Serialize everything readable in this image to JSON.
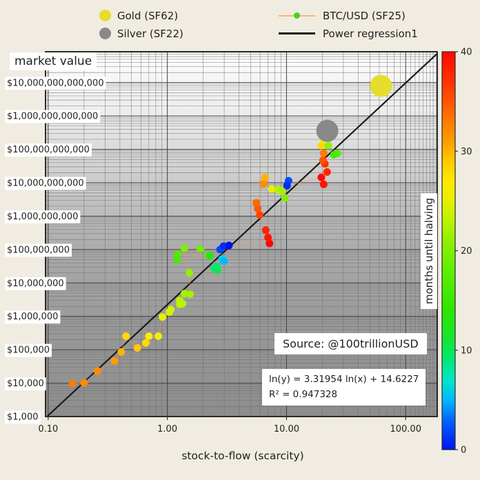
{
  "page_bg": "#f1ece1",
  "legend": {
    "items": [
      {
        "id": "gold",
        "label": "Gold (SF62)",
        "marker": "dot",
        "color": "#e6dd2d"
      },
      {
        "id": "silver",
        "label": "Silver (SF22)",
        "marker": "dot",
        "color": "#898989"
      },
      {
        "id": "btc",
        "label": "BTC/USD (SF25)",
        "marker": "line-dot",
        "line_color": "#ffb17a",
        "dot_color": "#3fd61f"
      },
      {
        "id": "regression",
        "label": "Power regression1",
        "marker": "line",
        "color": "#111111"
      }
    ]
  },
  "chart_data": {
    "type": "scatter",
    "xlabel": "stock-to-flow (scarcity)",
    "ylabel": "market value",
    "x_scale": "log",
    "y_scale": "log",
    "xlim": [
      0.095,
      184
    ],
    "ylim": [
      1000,
      84000000000000.0
    ],
    "grid": true,
    "x_ticks": [
      {
        "v": 0.1,
        "label": "0.10"
      },
      {
        "v": 1,
        "label": "1.00"
      },
      {
        "v": 10,
        "label": "10.00"
      },
      {
        "v": 100,
        "label": "100.00"
      }
    ],
    "y_ticks": [
      {
        "v": 1000.0,
        "label": "$1,000"
      },
      {
        "v": 10000.0,
        "label": "$10,000"
      },
      {
        "v": 100000.0,
        "label": "$100,000"
      },
      {
        "v": 1000000.0,
        "label": "$1,000,000"
      },
      {
        "v": 10000000.0,
        "label": "$10,000,000"
      },
      {
        "v": 100000000.0,
        "label": "$100,000,000"
      },
      {
        "v": 1000000000.0,
        "label": "$1,000,000,000"
      },
      {
        "v": 10000000000.0,
        "label": "$10,000,000,000"
      },
      {
        "v": 100000000000.0,
        "label": "$100,000,000,000"
      },
      {
        "v": 1000000000000.0,
        "label": "$1,000,000,000,000"
      },
      {
        "v": 10000000000000.0,
        "label": "$10,000,000,000,000"
      }
    ],
    "colorbar": {
      "label": "months until halving",
      "min": 0,
      "max": 40,
      "ticks": [
        0,
        10,
        20,
        30,
        40
      ],
      "stops": [
        [
          0,
          "#0013ee"
        ],
        [
          3,
          "#0066ff"
        ],
        [
          5,
          "#00b8ff"
        ],
        [
          7,
          "#00e6c8"
        ],
        [
          9,
          "#00e878"
        ],
        [
          11,
          "#14e632"
        ],
        [
          14,
          "#2ee600"
        ],
        [
          18,
          "#5fee00"
        ],
        [
          21,
          "#90f000"
        ],
        [
          23,
          "#bbf200"
        ],
        [
          25,
          "#e6f000"
        ],
        [
          27,
          "#ffe900"
        ],
        [
          29,
          "#ffc800"
        ],
        [
          31,
          "#ff9d00"
        ],
        [
          33,
          "#ff7a00"
        ],
        [
          35,
          "#ff5500"
        ],
        [
          37,
          "#ff3300"
        ],
        [
          40,
          "#ff0800"
        ]
      ]
    },
    "regression": {
      "equation": "ln(y) = 3.31954 ln(x) + 14.6227",
      "r2": "R² = 0.947328",
      "slope": 3.31954,
      "intercept": 14.6227,
      "line_color": "#1a1a1a"
    },
    "source": "Source: @100trillionUSD",
    "gold": {
      "name": "Gold (SF62)",
      "sf": 62,
      "market_value": 8000000000000.0,
      "color": "#e6dd2d",
      "radius": 16
    },
    "silver": {
      "name": "Silver (SF22)",
      "sf": 22,
      "market_value": 360000000000.0,
      "color": "#898989",
      "radius": 16
    },
    "btc_series": {
      "name": "BTC/USD (SF25)",
      "line_color": "#ff9a50",
      "dot_radius": 5.5,
      "points_format": [
        "stock_to_flow",
        "market_value_usd",
        "months_until_halving"
      ],
      "points": [
        [
          0.16,
          9700,
          33
        ],
        [
          0.2,
          10200,
          32
        ],
        [
          0.26,
          23000,
          32
        ],
        [
          0.36,
          46000,
          31
        ],
        [
          0.41,
          86000,
          30
        ],
        [
          0.45,
          255000,
          28
        ],
        [
          0.56,
          114000,
          29
        ],
        [
          0.66,
          160000,
          28
        ],
        [
          0.7,
          255000,
          27
        ],
        [
          0.84,
          255000,
          26
        ],
        [
          0.91,
          960000,
          25
        ],
        [
          1.04,
          1340000,
          24
        ],
        [
          1.07,
          1600000,
          24
        ],
        [
          1.27,
          2300000,
          23
        ],
        [
          1.34,
          2400000,
          23
        ],
        [
          1.27,
          3000000,
          23
        ],
        [
          1.39,
          4800000,
          22
        ],
        [
          1.55,
          4600000,
          22
        ],
        [
          1.53,
          20000000.0,
          21
        ],
        [
          1.39,
          110000000.0,
          20
        ],
        [
          1.89,
          105000000.0,
          19
        ],
        [
          2.21,
          68000000.0,
          18
        ],
        [
          1.22,
          72000000.0,
          17
        ],
        [
          1.2,
          49000000.0,
          16
        ],
        [
          2.27,
          65000000.0,
          13
        ],
        [
          2.63,
          24000000.0,
          11
        ],
        [
          2.46,
          28000000.0,
          10
        ],
        [
          2.6,
          31000000.0,
          9
        ],
        [
          2.88,
          52000000.0,
          6
        ],
        [
          3.0,
          45000000.0,
          5
        ],
        [
          2.77,
          100000000.0,
          2
        ],
        [
          2.96,
          127000000.0,
          1
        ],
        [
          3.29,
          133000000.0,
          0
        ],
        [
          7.2,
          153000000.0,
          40
        ],
        [
          7.0,
          230000000.0,
          39
        ],
        [
          6.7,
          380000000.0,
          38
        ],
        [
          5.96,
          1100000000.0,
          36
        ],
        [
          5.73,
          1700000000.0,
          35
        ],
        [
          5.58,
          2500000000.0,
          34
        ],
        [
          6.4,
          9400000000.0,
          32
        ],
        [
          6.6,
          14500000000.0,
          30
        ],
        [
          7.5,
          6500000000.0,
          25
        ],
        [
          8.5,
          6200000000.0,
          23
        ],
        [
          9.1,
          5900000000.0,
          22
        ],
        [
          9.7,
          3500000000.0,
          20
        ],
        [
          10.4,
          11500000000.0,
          2
        ],
        [
          10.1,
          8200000000.0,
          1
        ],
        [
          19.6,
          14500000000.0,
          40
        ],
        [
          20.5,
          9000000000.0,
          39
        ],
        [
          21.9,
          21000000000.0,
          38
        ],
        [
          21.0,
          37000000000.0,
          37
        ],
        [
          20.2,
          47000000000.0,
          35
        ],
        [
          20.5,
          76000000000.0,
          33
        ],
        [
          19.6,
          130000000000.0,
          28
        ],
        [
          20.2,
          210000000000.0,
          26
        ],
        [
          20.7,
          270000000000.0,
          25
        ],
        [
          22.4,
          130000000000.0,
          21
        ],
        [
          26.7,
          76000000000.0,
          17
        ],
        [
          25.0,
          69000000000.0,
          16
        ]
      ]
    }
  }
}
